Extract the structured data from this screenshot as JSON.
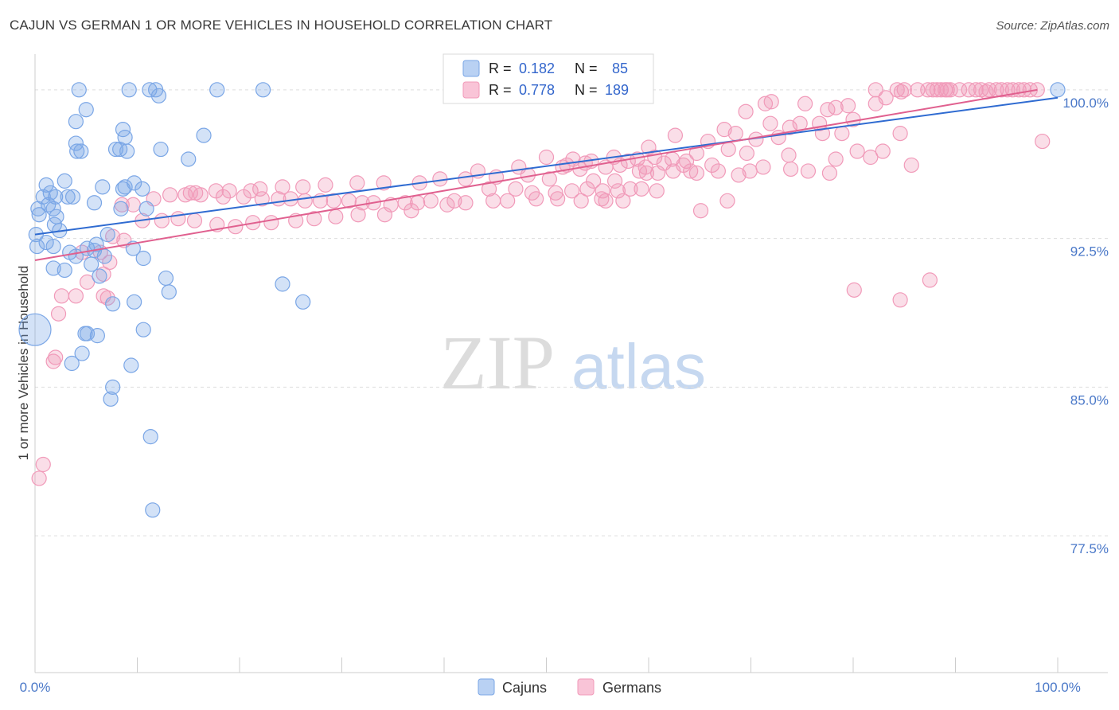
{
  "title": "CAJUN VS GERMAN 1 OR MORE VEHICLES IN HOUSEHOLD CORRELATION CHART",
  "source": "Source: ZipAtlas.com",
  "watermark": {
    "zip": "ZIP",
    "atlas": "atlas"
  },
  "colors": {
    "cajun": "#7aa6e6",
    "cajun_line": "#2f6bd1",
    "german": "#f19ab9",
    "german_line": "#e0608f",
    "tick": "#4a78c8",
    "grid": "#dddddd"
  },
  "legend": {
    "rows": [
      {
        "r_label": "R =",
        "r_value": "0.182",
        "n_label": "N =",
        "n_value": "85"
      },
      {
        "r_label": "R =",
        "r_value": "0.778",
        "n_label": "N =",
        "n_value": "189"
      }
    ]
  },
  "chart_data": {
    "type": "scatter",
    "xlabel": "",
    "ylabel": "1 or more Vehicles in Household",
    "xlim": [
      0,
      100
    ],
    "ylim": [
      70.6,
      101.8
    ],
    "x_tick_labels": [
      {
        "value": 0,
        "label": "0.0%"
      },
      {
        "value": 100,
        "label": "100.0%"
      }
    ],
    "y_ticks": [
      {
        "value": 100,
        "label": "100.0%"
      },
      {
        "value": 92.5,
        "label": "92.5%"
      },
      {
        "value": 85,
        "label": "85.0%"
      },
      {
        "value": 77.5,
        "label": "77.5%"
      }
    ],
    "grid": "horizontal dashed",
    "legend_placement": "top-center",
    "series": [
      {
        "name": "Cajuns",
        "color": "#7aa6e6",
        "trend": [
          [
            0,
            92.7
          ],
          [
            100,
            99.6
          ]
        ],
        "points": [
          [
            4.3,
            100
          ],
          [
            9.2,
            100
          ],
          [
            11.2,
            100
          ],
          [
            11.8,
            100
          ],
          [
            17.8,
            100
          ],
          [
            22.3,
            100
          ],
          [
            12.1,
            99.7
          ],
          [
            5,
            99
          ],
          [
            4,
            98.4
          ],
          [
            8.6,
            98
          ],
          [
            16.5,
            97.7
          ],
          [
            8.8,
            97.6
          ],
          [
            4,
            97.3
          ],
          [
            7.9,
            97
          ],
          [
            8.3,
            97
          ],
          [
            12.3,
            97
          ],
          [
            4.1,
            96.9
          ],
          [
            4.5,
            96.9
          ],
          [
            9,
            96.9
          ],
          [
            15,
            96.5
          ],
          [
            2.9,
            95.4
          ],
          [
            1.1,
            95.2
          ],
          [
            6.6,
            95.1
          ],
          [
            8.8,
            95.1
          ],
          [
            9.7,
            95.3
          ],
          [
            8.6,
            95
          ],
          [
            10.5,
            95
          ],
          [
            1.5,
            94.8
          ],
          [
            2,
            94.6
          ],
          [
            0.8,
            94.6
          ],
          [
            3.2,
            94.6
          ],
          [
            3.7,
            94.6
          ],
          [
            1.3,
            94.2
          ],
          [
            5.8,
            94.3
          ],
          [
            0.3,
            94
          ],
          [
            8.4,
            94
          ],
          [
            10.9,
            94
          ],
          [
            1.8,
            94
          ],
          [
            0.4,
            93.7
          ],
          [
            2.1,
            93.6
          ],
          [
            1.9,
            93.2
          ],
          [
            2.4,
            92.9
          ],
          [
            0.1,
            92.7
          ],
          [
            7.1,
            92.7
          ],
          [
            1.1,
            92.3
          ],
          [
            6,
            92.2
          ],
          [
            0.2,
            92.1
          ],
          [
            1.8,
            92.1
          ],
          [
            5.1,
            92
          ],
          [
            5.8,
            91.9
          ],
          [
            9.6,
            92
          ],
          [
            3.4,
            91.8
          ],
          [
            4,
            91.6
          ],
          [
            6.8,
            91.6
          ],
          [
            10.6,
            91.5
          ],
          [
            5.5,
            91.2
          ],
          [
            1.8,
            91
          ],
          [
            2.9,
            90.9
          ],
          [
            6.3,
            90.6
          ],
          [
            12.8,
            90.5
          ],
          [
            24.2,
            90.2
          ],
          [
            13.1,
            89.8
          ],
          [
            7.6,
            89.2
          ],
          [
            9.7,
            89.3
          ],
          [
            26.2,
            89.3
          ],
          [
            0,
            87.9
          ],
          [
            10.6,
            87.9
          ],
          [
            4.9,
            87.7
          ],
          [
            5.1,
            87.7
          ],
          [
            6.1,
            87.6
          ],
          [
            4.6,
            86.7
          ],
          [
            3.6,
            86.2
          ],
          [
            9.4,
            86.1
          ],
          [
            7.6,
            85
          ],
          [
            7.4,
            84.4
          ],
          [
            11.3,
            82.5
          ],
          [
            11.5,
            78.8
          ],
          [
            100,
            100
          ]
        ]
      },
      {
        "name": "Germans",
        "color": "#f19ab9",
        "trend": [
          [
            0,
            91.4
          ],
          [
            98,
            100
          ]
        ],
        "points": [
          [
            82.2,
            100
          ],
          [
            84.3,
            100
          ],
          [
            85,
            100
          ],
          [
            86.3,
            100
          ],
          [
            87.3,
            100
          ],
          [
            87.8,
            100
          ],
          [
            88.2,
            100
          ],
          [
            88.6,
            100
          ],
          [
            89,
            100
          ],
          [
            89.5,
            100
          ],
          [
            90.4,
            100
          ],
          [
            91.3,
            100
          ],
          [
            92,
            100
          ],
          [
            92.5,
            100
          ],
          [
            93.3,
            100
          ],
          [
            94,
            100
          ],
          [
            94.5,
            100
          ],
          [
            95.1,
            100
          ],
          [
            95.6,
            100
          ],
          [
            96.2,
            100
          ],
          [
            96.7,
            100
          ],
          [
            97.3,
            100
          ],
          [
            98,
            100
          ],
          [
            84.7,
            99.9
          ],
          [
            89.2,
            100
          ],
          [
            93,
            99.9
          ],
          [
            83.2,
            99.6
          ],
          [
            72,
            99.4
          ],
          [
            75.3,
            99.3
          ],
          [
            71.4,
            99.3
          ],
          [
            78.3,
            99.1
          ],
          [
            79.5,
            99.2
          ],
          [
            82.2,
            99.3
          ],
          [
            77.5,
            99
          ],
          [
            69.5,
            98.9
          ],
          [
            80,
            98.5
          ],
          [
            71.9,
            98.3
          ],
          [
            74.8,
            98.3
          ],
          [
            76.7,
            98.3
          ],
          [
            73.8,
            98.1
          ],
          [
            67.4,
            98
          ],
          [
            68.5,
            97.8
          ],
          [
            77,
            97.8
          ],
          [
            78.9,
            97.8
          ],
          [
            62.6,
            97.7
          ],
          [
            72.7,
            97.6
          ],
          [
            84.6,
            97.8
          ],
          [
            70.5,
            97.5
          ],
          [
            65.8,
            97.4
          ],
          [
            98.5,
            97.4
          ],
          [
            60,
            97.1
          ],
          [
            67.8,
            97
          ],
          [
            64.7,
            96.8
          ],
          [
            80.4,
            96.9
          ],
          [
            69.6,
            96.8
          ],
          [
            73.7,
            96.7
          ],
          [
            82.9,
            96.9
          ],
          [
            50,
            96.6
          ],
          [
            52.6,
            96.5
          ],
          [
            56.6,
            96.6
          ],
          [
            58.9,
            96.5
          ],
          [
            60.6,
            96.6
          ],
          [
            62.3,
            96.5
          ],
          [
            63.7,
            96.4
          ],
          [
            54.4,
            96.4
          ],
          [
            61.5,
            96.3
          ],
          [
            58,
            96.4
          ],
          [
            53.8,
            96.3
          ],
          [
            57.2,
            96.2
          ],
          [
            59.7,
            96.1
          ],
          [
            55.8,
            96.1
          ],
          [
            47.3,
            96.1
          ],
          [
            51.6,
            96.1
          ],
          [
            53.3,
            96
          ],
          [
            63.4,
            96.2
          ],
          [
            66.2,
            96.2
          ],
          [
            78.3,
            96.5
          ],
          [
            81.7,
            96.6
          ],
          [
            85.7,
            96.2
          ],
          [
            71.2,
            96.1
          ],
          [
            73.9,
            96
          ],
          [
            75.6,
            95.9
          ],
          [
            66.8,
            95.9
          ],
          [
            68.8,
            95.7
          ],
          [
            64.7,
            95.8
          ],
          [
            62.4,
            95.9
          ],
          [
            59.1,
            95.9
          ],
          [
            59.8,
            95.8
          ],
          [
            43.3,
            95.9
          ],
          [
            45.1,
            95.6
          ],
          [
            48.2,
            95.7
          ],
          [
            50.3,
            95.5
          ],
          [
            54.6,
            95.4
          ],
          [
            56.7,
            95.4
          ],
          [
            42.1,
            95.5
          ],
          [
            39.6,
            95.5
          ],
          [
            37.6,
            95.3
          ],
          [
            34.1,
            95.3
          ],
          [
            31.5,
            95.3
          ],
          [
            28.4,
            95.2
          ],
          [
            26.2,
            95.1
          ],
          [
            24.2,
            95.1
          ],
          [
            22,
            95
          ],
          [
            21.1,
            94.9
          ],
          [
            19,
            94.9
          ],
          [
            17.7,
            94.9
          ],
          [
            15.7,
            94.8
          ],
          [
            14.7,
            94.7
          ],
          [
            13.2,
            94.7
          ],
          [
            11.6,
            94.5
          ],
          [
            9.6,
            94.2
          ],
          [
            8.5,
            94.2
          ],
          [
            15.2,
            94.8
          ],
          [
            16.2,
            94.7
          ],
          [
            18.4,
            94.6
          ],
          [
            20.4,
            94.6
          ],
          [
            22.2,
            94.5
          ],
          [
            23.8,
            94.5
          ],
          [
            25,
            94.5
          ],
          [
            26.4,
            94.4
          ],
          [
            27.9,
            94.4
          ],
          [
            29.2,
            94.4
          ],
          [
            30.7,
            94.4
          ],
          [
            32,
            94.3
          ],
          [
            33.1,
            94.3
          ],
          [
            34.8,
            94.2
          ],
          [
            36.2,
            94.3
          ],
          [
            37.4,
            94.3
          ],
          [
            38.7,
            94.4
          ],
          [
            41,
            94.4
          ],
          [
            44.4,
            95
          ],
          [
            47,
            95
          ],
          [
            48.6,
            94.8
          ],
          [
            50.9,
            94.8
          ],
          [
            52.5,
            94.9
          ],
          [
            54,
            95
          ],
          [
            55.5,
            94.9
          ],
          [
            57,
            94.9
          ],
          [
            58.2,
            95
          ],
          [
            59.3,
            95
          ],
          [
            60.8,
            94.9
          ],
          [
            57.5,
            94.4
          ],
          [
            55.4,
            94.5
          ],
          [
            53.4,
            94.4
          ],
          [
            51.1,
            94.5
          ],
          [
            49,
            94.5
          ],
          [
            46.2,
            94.4
          ],
          [
            44.8,
            94.4
          ],
          [
            42.1,
            94.3
          ],
          [
            40.3,
            94.2
          ],
          [
            36.8,
            93.9
          ],
          [
            34.2,
            93.7
          ],
          [
            31.6,
            93.7
          ],
          [
            29.4,
            93.6
          ],
          [
            27.3,
            93.5
          ],
          [
            25.5,
            93.4
          ],
          [
            23.1,
            93.3
          ],
          [
            21.3,
            93.3
          ],
          [
            19.6,
            93.1
          ],
          [
            17.8,
            93.2
          ],
          [
            15.6,
            93.4
          ],
          [
            14,
            93.5
          ],
          [
            12.4,
            93.4
          ],
          [
            10.5,
            93.4
          ],
          [
            7.6,
            92.6
          ],
          [
            8.7,
            92.4
          ],
          [
            4.6,
            91.8
          ],
          [
            6.4,
            91.8
          ],
          [
            7.3,
            91.3
          ],
          [
            6.7,
            90.7
          ],
          [
            5.1,
            90.3
          ],
          [
            4,
            89.6
          ],
          [
            2.6,
            89.6
          ],
          [
            6.7,
            89.6
          ],
          [
            7.1,
            89.5
          ],
          [
            2.3,
            88.7
          ],
          [
            1.8,
            86.3
          ],
          [
            2,
            86.5
          ],
          [
            0.8,
            81.1
          ],
          [
            0.4,
            80.4
          ],
          [
            80.1,
            89.9
          ],
          [
            84.6,
            89.4
          ],
          [
            87.5,
            90.4
          ],
          [
            55.8,
            94.4
          ],
          [
            65.1,
            93.9
          ],
          [
            67.7,
            94.4
          ],
          [
            64.1,
            95.9
          ],
          [
            69.9,
            95.9
          ],
          [
            77.7,
            95.8
          ],
          [
            60.9,
            95.8
          ],
          [
            52,
            96.2
          ]
        ]
      }
    ]
  }
}
